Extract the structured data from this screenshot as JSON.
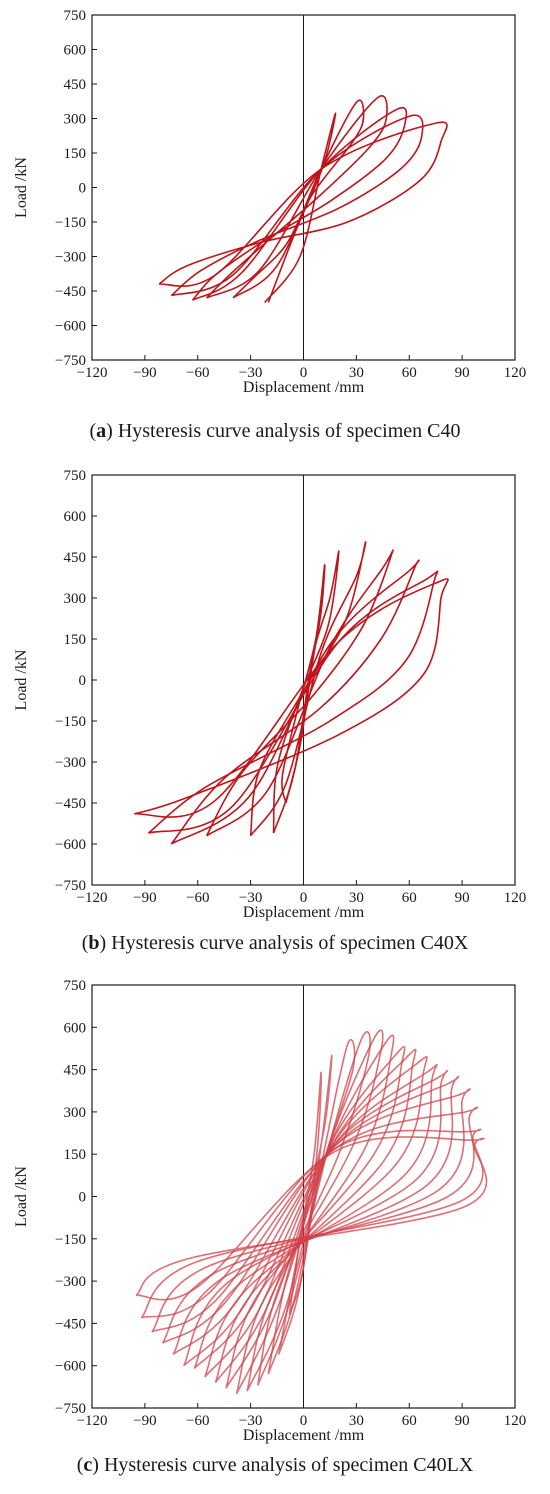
{
  "chart_data": [
    {
      "type": "line",
      "caption": {
        "letter": "a",
        "text": " Hysteresis curve analysis of specimen C40"
      },
      "xlabel": "Displacement /mm",
      "ylabel": "Load /kN",
      "xlim": [
        -120,
        120
      ],
      "ylim": [
        -750,
        750
      ],
      "xticks": [
        -120,
        -90,
        -60,
        -30,
        0,
        30,
        60,
        90,
        120
      ],
      "yticks": [
        750,
        600,
        450,
        300,
        150,
        0,
        -150,
        -300,
        -450,
        -600,
        -750
      ],
      "grid": false,
      "legend": "none",
      "color": "#c0141a",
      "stroke_opacity": 1,
      "series": [
        {
          "x": [
            -22,
            -2,
            10,
            18,
            15,
            10,
            -5,
            -20
          ],
          "y": [
            -500,
            -300,
            80,
            320,
            200,
            70,
            -200,
            -500
          ]
        },
        {
          "x": [
            -40,
            -15,
            10,
            30,
            34,
            28,
            5,
            -10,
            -28,
            -40
          ],
          "y": [
            -480,
            -340,
            80,
            370,
            300,
            200,
            -30,
            -250,
            -390,
            -480
          ]
        },
        {
          "x": [
            -55,
            -25,
            10,
            42,
            47,
            38,
            10,
            -20,
            -42,
            -55
          ],
          "y": [
            -480,
            -360,
            80,
            390,
            300,
            180,
            -30,
            -230,
            -380,
            -480
          ]
        },
        {
          "x": [
            -63,
            -35,
            10,
            53,
            57,
            46,
            15,
            -22,
            -50,
            -63
          ],
          "y": [
            -490,
            -370,
            80,
            340,
            260,
            120,
            -60,
            -230,
            -380,
            -490
          ]
        },
        {
          "x": [
            -75,
            -40,
            10,
            60,
            67,
            55,
            20,
            -25,
            -58,
            -75
          ],
          "y": [
            -470,
            -380,
            80,
            310,
            220,
            80,
            -90,
            -230,
            -360,
            -470
          ]
        },
        {
          "x": [
            -82,
            -50,
            10,
            75,
            78,
            66,
            25,
            -25,
            -66,
            -82
          ],
          "y": [
            -420,
            -380,
            80,
            280,
            200,
            30,
            -150,
            -240,
            -340,
            -420
          ]
        }
      ]
    },
    {
      "type": "line",
      "caption": {
        "letter": "b",
        "text": " Hysteresis curve analysis of specimen C40X"
      },
      "xlabel": "Displacement /mm",
      "ylabel": "Load /kN",
      "xlim": [
        -120,
        120
      ],
      "ylim": [
        -750,
        750
      ],
      "xticks": [
        -120,
        -90,
        -60,
        -30,
        0,
        30,
        60,
        90,
        120
      ],
      "yticks": [
        750,
        600,
        450,
        300,
        150,
        0,
        -150,
        -300,
        -450,
        -600,
        -750
      ],
      "grid": false,
      "legend": "none",
      "color": "#c0141a",
      "stroke_opacity": 1,
      "series": [
        {
          "x": [
            -10,
            -2,
            5,
            10,
            12,
            7,
            -3,
            -12,
            -10
          ],
          "y": [
            -450,
            -240,
            60,
            250,
            420,
            150,
            -100,
            -350,
            -450
          ]
        },
        {
          "x": [
            -17,
            -5,
            5,
            15,
            20,
            14,
            -2,
            -15,
            -17
          ],
          "y": [
            -560,
            -330,
            80,
            300,
            470,
            200,
            -60,
            -320,
            -560
          ]
        },
        {
          "x": [
            -30,
            -10,
            10,
            30,
            35,
            24,
            0,
            -25,
            -30
          ],
          "y": [
            -570,
            -380,
            100,
            380,
            500,
            220,
            -40,
            -330,
            -570
          ]
        },
        {
          "x": [
            -55,
            -20,
            15,
            45,
            50,
            34,
            5,
            -35,
            -55
          ],
          "y": [
            -570,
            -400,
            120,
            410,
            460,
            200,
            -60,
            -340,
            -570
          ]
        },
        {
          "x": [
            -75,
            -30,
            15,
            60,
            63,
            44,
            10,
            -45,
            -75
          ],
          "y": [
            -600,
            -420,
            130,
            400,
            410,
            150,
            -100,
            -360,
            -600
          ]
        },
        {
          "x": [
            -88,
            -40,
            20,
            70,
            74,
            58,
            15,
            -55,
            -88
          ],
          "y": [
            -560,
            -460,
            140,
            370,
            360,
            70,
            -150,
            -390,
            -560
          ]
        },
        {
          "x": [
            -96,
            -50,
            20,
            77,
            78,
            68,
            20,
            -66,
            -96
          ],
          "y": [
            -490,
            -440,
            140,
            360,
            300,
            20,
            -200,
            -430,
            -490
          ]
        }
      ]
    },
    {
      "type": "line",
      "caption": {
        "letter": "c",
        "text": " Hysteresis curve analysis of specimen C40LX"
      },
      "xlabel": "Displacement /mm",
      "ylabel": "Load /kN",
      "xlim": [
        -120,
        120
      ],
      "ylim": [
        -750,
        750
      ],
      "xticks": [
        -120,
        -90,
        -60,
        -30,
        0,
        30,
        60,
        90,
        120
      ],
      "yticks": [
        750,
        600,
        450,
        300,
        150,
        0,
        -150,
        -300,
        -450,
        -600,
        -750
      ],
      "grid": false,
      "legend": "none",
      "color": "#d24048",
      "stroke_opacity": 0.75,
      "series": [
        {
          "x": [
            -8,
            0,
            8,
            10,
            6,
            -2,
            -8
          ],
          "y": [
            -420,
            -250,
            180,
            440,
            150,
            -150,
            -420
          ]
        },
        {
          "x": [
            -14,
            -2,
            10,
            16,
            12,
            0,
            -14
          ],
          "y": [
            -560,
            -320,
            180,
            500,
            250,
            -100,
            -560
          ]
        },
        {
          "x": [
            -20,
            -5,
            12,
            25,
            28,
            10,
            -10,
            -20
          ],
          "y": [
            -630,
            -360,
            170,
            540,
            450,
            100,
            -300,
            -630
          ]
        },
        {
          "x": [
            -26,
            -8,
            14,
            33,
            37,
            20,
            -15,
            -26
          ],
          "y": [
            -670,
            -380,
            170,
            560,
            500,
            150,
            -340,
            -670
          ]
        },
        {
          "x": [
            -32,
            -10,
            14,
            40,
            44,
            28,
            -18,
            -32
          ],
          "y": [
            -690,
            -390,
            170,
            560,
            520,
            180,
            -350,
            -690
          ]
        },
        {
          "x": [
            -38,
            -15,
            15,
            46,
            50,
            34,
            -22,
            -38
          ],
          "y": [
            -700,
            -400,
            180,
            540,
            510,
            160,
            -360,
            -700
          ]
        },
        {
          "x": [
            -44,
            -18,
            15,
            52,
            56,
            40,
            -26,
            -44
          ],
          "y": [
            -680,
            -400,
            180,
            500,
            480,
            150,
            -350,
            -680
          ]
        },
        {
          "x": [
            -50,
            -22,
            16,
            58,
            62,
            46,
            -30,
            -50
          ],
          "y": [
            -660,
            -410,
            180,
            490,
            470,
            130,
            -350,
            -660
          ]
        },
        {
          "x": [
            -56,
            -26,
            16,
            64,
            68,
            52,
            -34,
            -56
          ],
          "y": [
            -640,
            -410,
            180,
            470,
            440,
            110,
            -340,
            -640
          ]
        },
        {
          "x": [
            -62,
            -30,
            17,
            70,
            73,
            58,
            -38,
            -62
          ],
          "y": [
            -610,
            -400,
            180,
            440,
            420,
            80,
            -320,
            -610
          ]
        },
        {
          "x": [
            -68,
            -35,
            17,
            76,
            78,
            64,
            -42,
            -68
          ],
          "y": [
            -600,
            -400,
            180,
            420,
            400,
            60,
            -300,
            -600
          ]
        },
        {
          "x": [
            -74,
            -40,
            18,
            82,
            84,
            70,
            -46,
            -74
          ],
          "y": [
            -560,
            -390,
            180,
            400,
            380,
            40,
            -290,
            -560
          ]
        },
        {
          "x": [
            -80,
            -45,
            18,
            88,
            90,
            76,
            -50,
            -80
          ],
          "y": [
            -520,
            -380,
            180,
            360,
            340,
            20,
            -270,
            -520
          ]
        },
        {
          "x": [
            -86,
            -50,
            18,
            92,
            94,
            82,
            -55,
            -86
          ],
          "y": [
            -480,
            -370,
            170,
            300,
            280,
            0,
            -250,
            -480
          ]
        },
        {
          "x": [
            -92,
            -55,
            18,
            94,
            96,
            88,
            -60,
            -92
          ],
          "y": [
            -430,
            -350,
            170,
            230,
            210,
            -20,
            -230,
            -430
          ]
        },
        {
          "x": [
            -95,
            -60,
            18,
            96,
            97,
            90,
            -65,
            -95
          ],
          "y": [
            -350,
            -320,
            160,
            200,
            180,
            -40,
            -220,
            -350
          ]
        }
      ]
    }
  ]
}
